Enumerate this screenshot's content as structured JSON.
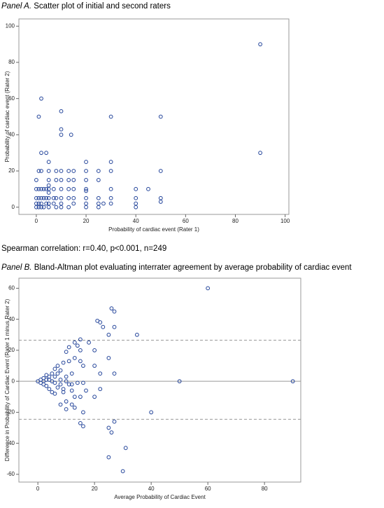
{
  "chart_data": [
    {
      "type": "scatter",
      "panel_label": "Panel A.",
      "title": "Scatter plot of initial and second raters",
      "x_label": "Probability of cardiac event (Rater 1)",
      "y_label": "Probability of cardiac event (Rater 2)",
      "annotation": "Spearman correlation: r=0.40, p<0.001, n=249",
      "color": "#23449a",
      "xlim": [
        -7,
        101.5
      ],
      "ylim": [
        -4,
        104
      ],
      "xticks": [
        0,
        20,
        40,
        60,
        80,
        100
      ],
      "yticks": [
        0,
        20,
        40,
        60,
        80,
        100
      ],
      "x": [
        0,
        0,
        0,
        0,
        0,
        1,
        1,
        1,
        1,
        1,
        1,
        2,
        2,
        2,
        2,
        2,
        2,
        2,
        3,
        3,
        3,
        4,
        4,
        4,
        4,
        5,
        5,
        5,
        5,
        5,
        5,
        5,
        5,
        5,
        7,
        7,
        7,
        8,
        8,
        8,
        8,
        10,
        10,
        10,
        10,
        10,
        10,
        10,
        10,
        10,
        13,
        13,
        13,
        13,
        13,
        14,
        15,
        15,
        15,
        15,
        15,
        20,
        20,
        20,
        20,
        20,
        20,
        20,
        20,
        25,
        25,
        25,
        25,
        25,
        27,
        30,
        30,
        30,
        30,
        30,
        30,
        40,
        40,
        40,
        40,
        45,
        50,
        50,
        50,
        50,
        90,
        90
      ],
      "y": [
        0,
        2,
        5,
        10,
        15,
        0,
        2,
        5,
        10,
        20,
        50,
        0,
        2,
        5,
        10,
        20,
        30,
        60,
        0,
        5,
        10,
        2,
        5,
        10,
        30,
        0,
        2,
        5,
        8,
        10,
        12,
        15,
        20,
        25,
        2,
        5,
        10,
        0,
        5,
        15,
        20,
        0,
        2,
        5,
        10,
        15,
        20,
        40,
        43,
        53,
        0,
        5,
        10,
        15,
        20,
        40,
        2,
        5,
        10,
        15,
        20,
        0,
        2,
        5,
        9,
        10,
        15,
        20,
        25,
        0,
        2,
        5,
        15,
        20,
        2,
        2,
        5,
        10,
        20,
        25,
        50,
        0,
        2,
        5,
        10,
        10,
        3,
        5,
        20,
        50,
        30,
        90
      ]
    },
    {
      "type": "scatter",
      "panel_label": "Panel B.",
      "title": "Bland-Altman plot evaluating interrater agreement by average probability of cardiac event",
      "x_label": "Average Probability of Cardiac Event",
      "y_label": "Difference in Probability of Cardiac Event (Rater 1 minus Rater 2)",
      "color": "#23449a",
      "xlim": [
        -6.7,
        92.8
      ],
      "ylim": [
        -65,
        66.5
      ],
      "xticks": [
        0,
        20,
        40,
        60,
        80
      ],
      "yticks": [
        -60,
        -40,
        -20,
        0,
        20,
        40,
        60
      ],
      "reference_lines": [
        {
          "value": 26.5,
          "style": "dashed"
        },
        {
          "value": 0,
          "style": "solid"
        },
        {
          "value": -24.5,
          "style": "dashed"
        }
      ],
      "x": [
        60,
        26,
        27,
        21,
        22,
        23,
        27,
        25,
        35,
        15,
        18,
        13,
        14,
        11,
        15,
        20,
        10,
        13,
        15,
        11,
        16,
        20,
        25,
        9,
        7,
        6,
        8,
        12,
        22,
        27,
        7,
        6,
        10,
        8,
        9,
        12,
        17,
        22,
        13,
        15,
        20,
        10,
        12,
        13,
        8,
        10,
        16,
        40,
        15,
        16,
        25,
        27,
        26,
        31,
        25,
        30,
        50,
        90,
        0,
        1,
        1,
        2,
        2,
        3,
        3,
        4,
        4,
        5,
        5,
        6,
        7,
        5,
        4,
        3,
        2,
        6,
        8,
        10,
        12,
        9,
        11,
        14,
        16
      ],
      "y": [
        60,
        47,
        45,
        39,
        38,
        35,
        35,
        30,
        30,
        27,
        25,
        25,
        23,
        22,
        20,
        20,
        19,
        15,
        13,
        13,
        10,
        10,
        15,
        12,
        10,
        8,
        7,
        5,
        5,
        5,
        5,
        3,
        3,
        -2,
        -5,
        -6,
        -6,
        -5,
        -10,
        -10,
        -10,
        -13,
        -15,
        -17,
        -15,
        -18,
        -20,
        -20,
        -27,
        -29,
        -30,
        -26,
        -33,
        -43,
        -49,
        -58,
        0,
        0,
        0,
        -1,
        1,
        0,
        2,
        -3,
        4,
        3,
        -5,
        -7,
        5,
        -8,
        -4,
        0,
        1,
        1,
        -2,
        -1,
        1,
        0,
        -2,
        -7,
        -2,
        -1,
        -1
      ]
    }
  ]
}
